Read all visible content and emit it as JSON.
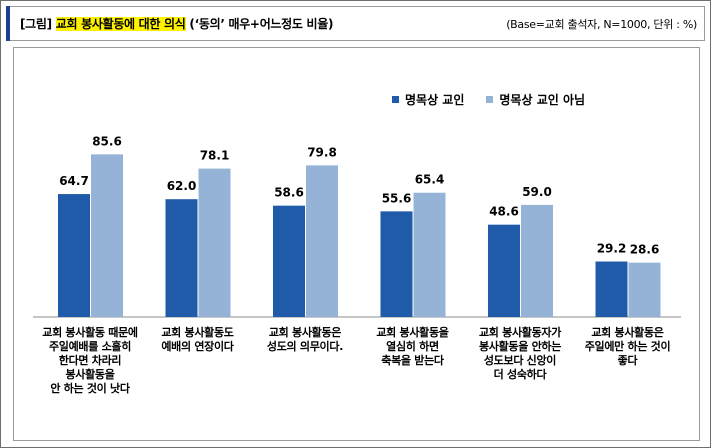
{
  "header": {
    "title_prefix": "[그림] ",
    "title_highlight": "교회 봉사활동에 대한 의식",
    "title_suffix": " (‘동의’ 매우+어느정도 비율)",
    "base_note": "(Base=교회 출석자, N=1000, 단위 : %)"
  },
  "colors": {
    "series_dark": "#1f5ba8",
    "series_light": "#95b3d7"
  },
  "chart_data": {
    "type": "bar",
    "categories": [
      "교회 봉사활동 때문에\n주일예배를 소홀히\n한다면 차라리\n봉사활동을\n안 하는 것이 낫다",
      "교회 봉사활동도\n예배의 연장이다",
      "교회 봉사활동은\n성도의 의무이다.",
      "교회 봉사활동을\n열심히 하면\n축복을 받는다",
      "교회 봉사활동자가\n봉사활동을 안하는\n성도보다 신앙이\n더 성숙하다",
      "교회 봉사활동은\n주일에만 하는 것이\n좋다"
    ],
    "series": [
      {
        "name": "명목상 교인",
        "values": [
          64.7,
          62.0,
          58.6,
          55.6,
          48.6,
          29.2
        ],
        "labels": [
          "64.7",
          "62.0",
          "58.6",
          "55.6",
          "48.6",
          "29.2"
        ]
      },
      {
        "name": "명목상 교인 아님",
        "values": [
          85.6,
          78.1,
          79.8,
          65.4,
          59.0,
          28.6
        ],
        "labels": [
          "85.6",
          "78.1",
          "79.8",
          "65.4",
          "59.0",
          "28.6"
        ]
      }
    ],
    "ylim": [
      0,
      100
    ],
    "legend_position": "top-right",
    "grid": false
  }
}
